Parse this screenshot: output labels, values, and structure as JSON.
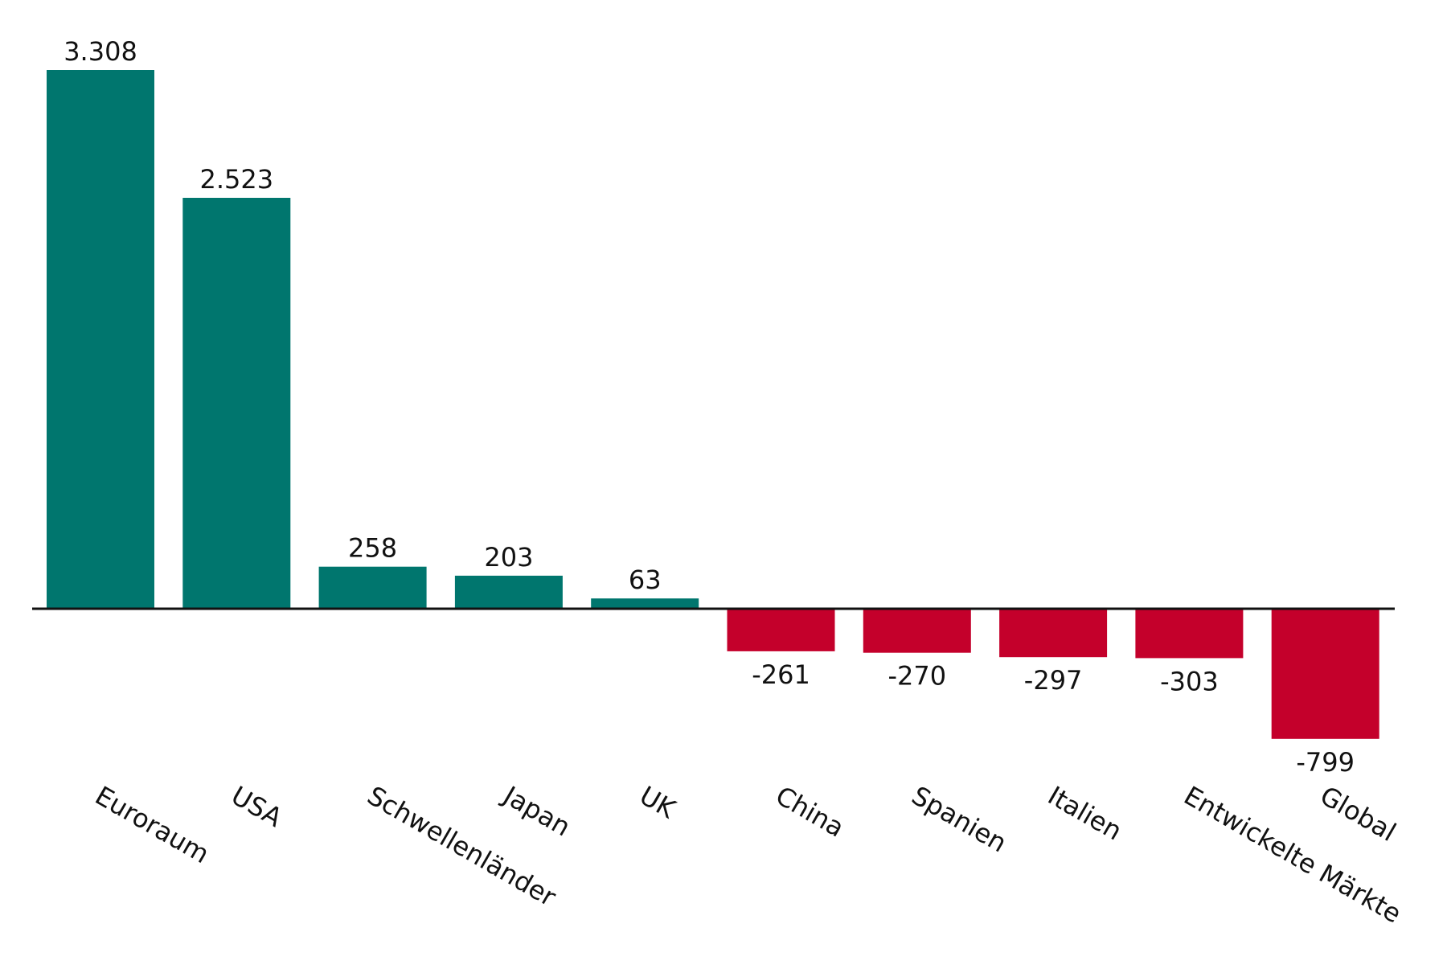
{
  "chart_data": {
    "type": "bar",
    "title": "",
    "xlabel": "",
    "ylabel": "",
    "categories": [
      "Euroraum",
      "USA",
      "Schwellenländer",
      "Japan",
      "UK",
      "China",
      "Spanien",
      "Italien",
      "Entwickelte Märkte",
      "Global"
    ],
    "values": [
      3308,
      2523,
      258,
      203,
      63,
      -261,
      -270,
      -297,
      -303,
      -799
    ],
    "value_labels": [
      "3.308",
      "2.523",
      "258",
      "203",
      "63",
      "-261",
      "-270",
      "-297",
      "-303",
      "-799"
    ],
    "ylim": [
      -799,
      3308
    ],
    "grid": false,
    "legend": "none",
    "colors": {
      "positive": "#00766e",
      "negative": "#c4002b",
      "axis": "#111111"
    }
  }
}
